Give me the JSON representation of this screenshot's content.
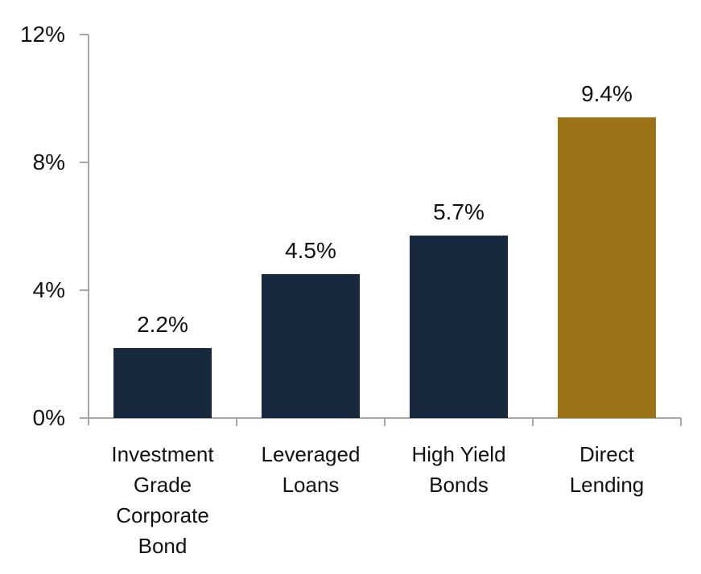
{
  "chart_data": {
    "type": "bar",
    "categories": [
      "Investment\nGrade\nCorporate\nBond",
      "Leveraged\nLoans",
      "High Yield\nBonds",
      "Direct\nLending"
    ],
    "values": [
      2.2,
      4.5,
      5.7,
      9.4
    ],
    "value_labels": [
      "2.2%",
      "4.5%",
      "5.7%",
      "9.4%"
    ],
    "y_tick_labels": [
      "12%",
      "8%",
      "4%",
      "0%"
    ],
    "y_tick_values": [
      12,
      8,
      4,
      0
    ],
    "ylim": [
      0,
      12
    ],
    "title": "",
    "xlabel": "",
    "ylabel": "",
    "grid": false,
    "legend": "none",
    "bar_colors": [
      "#16293e",
      "#16293e",
      "#16293e",
      "#9c7216"
    ],
    "colors": {
      "navy": "#16293e",
      "gold": "#9c7216",
      "axis": "#a6a6a6",
      "text": "#111111",
      "background": "#ffffff"
    }
  }
}
